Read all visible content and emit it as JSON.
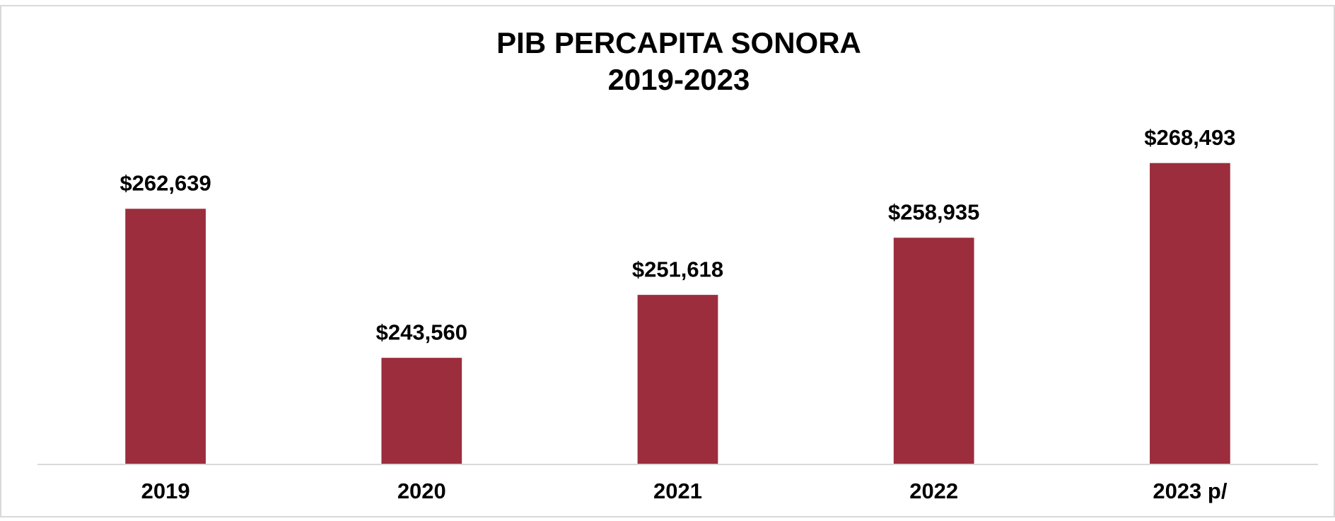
{
  "chart_data": {
    "type": "bar",
    "title": "PIB PERCAPITA SONORA",
    "subtitle": "2019-2023",
    "categories": [
      "2019",
      "2020",
      "2021",
      "2022",
      "2023 p/"
    ],
    "values": [
      262639,
      243560,
      251618,
      258935,
      268493
    ],
    "value_labels": [
      "$262,639",
      "$243,560",
      "$251,618",
      "$258,935",
      "$268,493"
    ],
    "color": "#9b2d3d",
    "ylim": [
      230000,
      270000
    ]
  }
}
